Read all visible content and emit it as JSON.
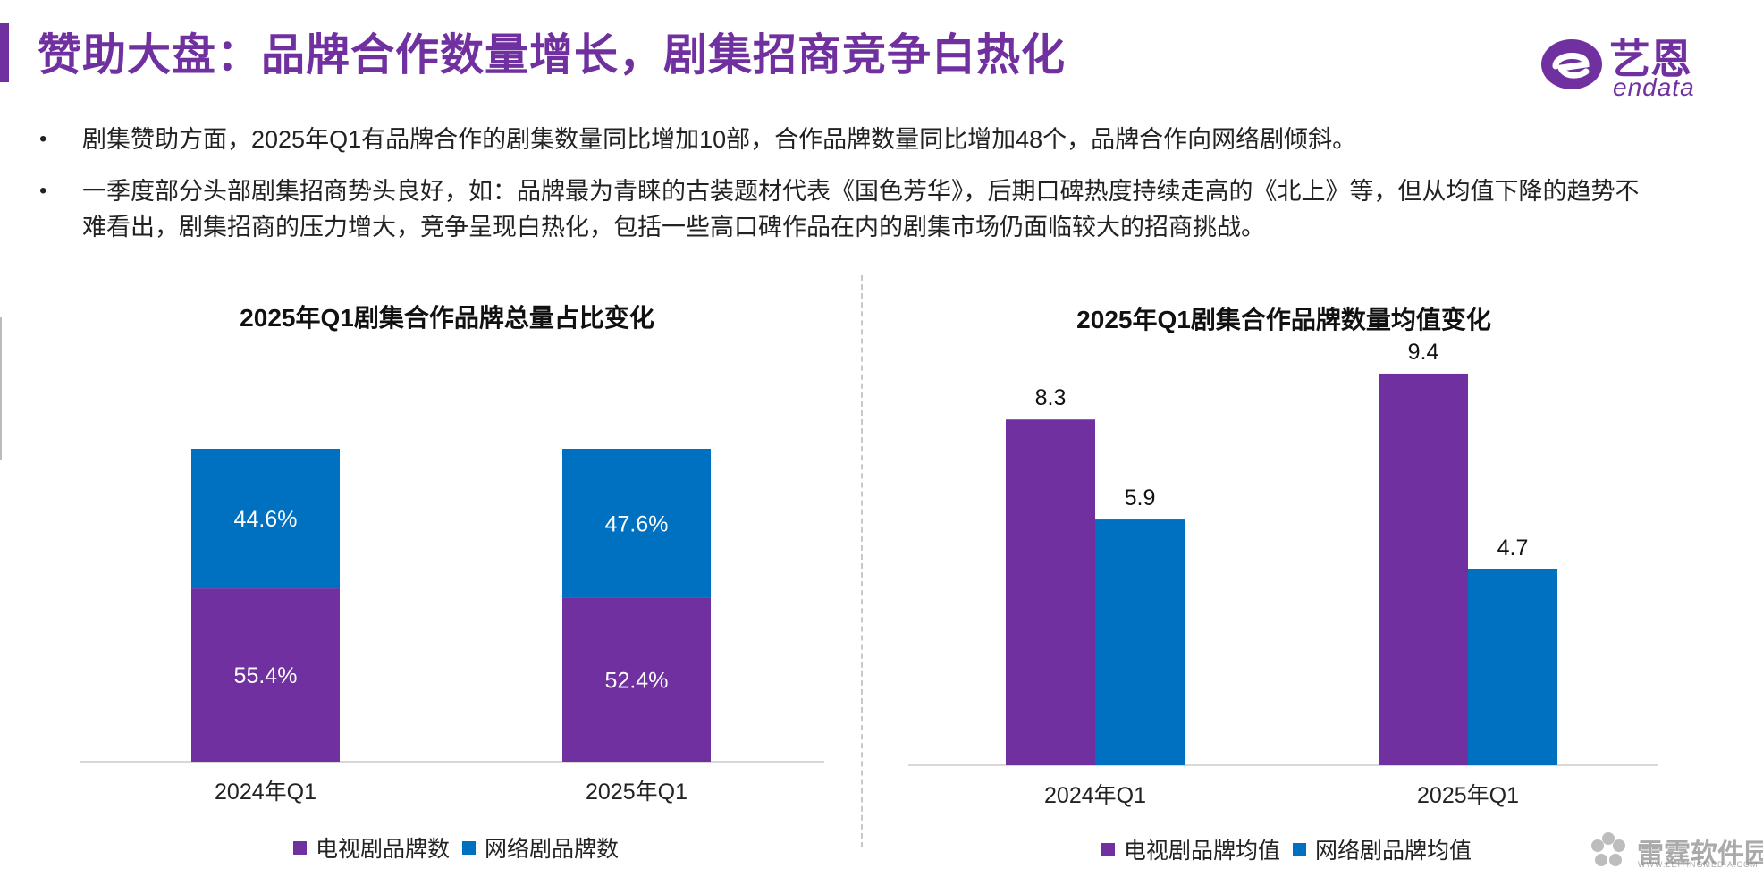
{
  "page": {
    "title": "赞助大盘：品牌合作数量增长，剧集招商竞争白热化",
    "accent_color": "#7030a0"
  },
  "logo": {
    "cn": "艺恩",
    "en": "endata"
  },
  "bullets": [
    "剧集赞助方面，2025年Q1有品牌合作的剧集数量同比增加10部，合作品牌数量同比增加48个，品牌合作向网络剧倾斜。",
    "一季度部分头部剧集招商势头良好，如：品牌最为青睐的古装题材代表《国色芳华》，后期口碑热度持续走高的《北上》等，但从均值下降的趋势不难看出，剧集招商的压力增大，竞争呈现白热化，包括一些高口碑作品在内的剧集市场仍面临较大的招商挑战。"
  ],
  "bullet_symbol": "•",
  "watermark": {
    "cn": "雷霆软件园",
    "en": "WWW.LEITINGMEDIA.COM"
  },
  "chart_data": [
    {
      "type": "bar",
      "stacked": true,
      "title": "2025年Q1剧集合作品牌总量占比变化",
      "categories": [
        "2024年Q1",
        "2025年Q1"
      ],
      "series": [
        {
          "name": "电视剧品牌数",
          "values": [
            55.4,
            52.4
          ],
          "labels": [
            "55.4%",
            "52.4%"
          ],
          "color": "#7030a0"
        },
        {
          "name": "网络剧品牌数",
          "values": [
            44.6,
            47.6
          ],
          "labels": [
            "44.6%",
            "47.6%"
          ],
          "color": "#0070c0"
        }
      ],
      "ylim": [
        0,
        100
      ],
      "grid": false,
      "legend_position": "bottom",
      "label_color": "#ffffff"
    },
    {
      "type": "bar",
      "stacked": false,
      "title": "2025年Q1剧集合作品牌数量均值变化",
      "categories": [
        "2024年Q1",
        "2025年Q1"
      ],
      "series": [
        {
          "name": "电视剧品牌均值",
          "values": [
            8.3,
            9.4
          ],
          "labels": [
            "8.3",
            "9.4"
          ],
          "color": "#7030a0"
        },
        {
          "name": "网络剧品牌均值",
          "values": [
            5.9,
            4.7
          ],
          "labels": [
            "5.9",
            "4.7"
          ],
          "color": "#0070c0"
        }
      ],
      "ylim": [
        0,
        10
      ],
      "grid": false,
      "legend_position": "bottom",
      "label_color": "#111111"
    }
  ]
}
